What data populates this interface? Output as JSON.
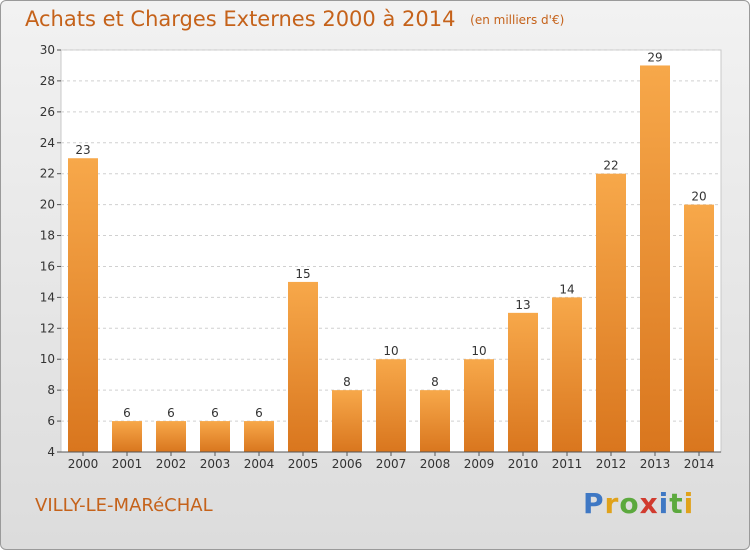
{
  "title": "Achats et Charges Externes 2000 à 2014",
  "subtitle": "(en milliers d'€)",
  "commune": "VILLY-LE-MARéCHAL",
  "logo": {
    "text": "Proxiti",
    "parts": [
      {
        "text": "P",
        "color": "#3f78c4"
      },
      {
        "text": "r",
        "color": "#e0a21b"
      },
      {
        "text": "o",
        "color": "#5ca93e"
      },
      {
        "text": "x",
        "color": "#d13b2f"
      },
      {
        "text": "i",
        "color": "#3f78c4"
      },
      {
        "text": "t",
        "color": "#5ca93e"
      },
      {
        "text": "i",
        "color": "#e0a21b"
      }
    ]
  },
  "colors": {
    "accent": "#c5621a",
    "bar_light": "#f7a84a",
    "bar_dark": "#d9761e"
  },
  "chart_data": {
    "type": "bar",
    "categories": [
      "2000",
      "2001",
      "2002",
      "2003",
      "2004",
      "2005",
      "2006",
      "2007",
      "2008",
      "2009",
      "2010",
      "2011",
      "2012",
      "2013",
      "2014"
    ],
    "values": [
      23,
      6,
      6,
      6,
      6,
      15,
      8,
      10,
      8,
      10,
      13,
      14,
      22,
      29,
      20
    ],
    "ylim": [
      4,
      30
    ],
    "yticks": [
      4,
      6,
      8,
      10,
      12,
      14,
      16,
      18,
      20,
      22,
      24,
      26,
      28,
      30
    ],
    "grid": true,
    "data_labels": true
  }
}
